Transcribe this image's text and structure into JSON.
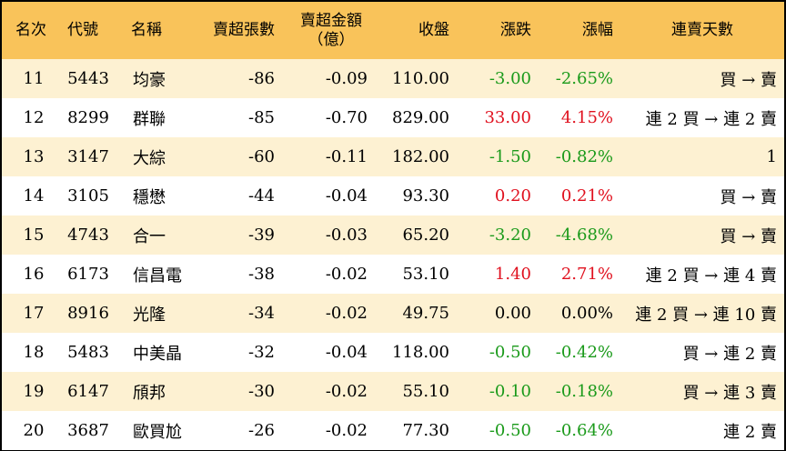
{
  "colors": {
    "header_bg": "#f9c35a",
    "odd_row_bg": "#fdf1d2",
    "even_row_bg": "#ffffff",
    "up": "#e0101e",
    "down": "#1a9a1a",
    "neutral": "#000000"
  },
  "headers": {
    "rank": "名次",
    "code": "代號",
    "name": "名稱",
    "sell_lots": "賣超張數",
    "sell_amount_line1": "賣超金額",
    "sell_amount_line2": "（億）",
    "close": "收盤",
    "change": "漲跌",
    "pct": "漲幅",
    "streak": "連賣天數"
  },
  "rows": [
    {
      "rank": "11",
      "code": "5443",
      "name": "均豪",
      "lots": "-86",
      "amount": "-0.09",
      "close": "110.00",
      "change": "-3.00",
      "pct": "-2.65%",
      "dir": "down",
      "streak": "買 → 賣"
    },
    {
      "rank": "12",
      "code": "8299",
      "name": "群聯",
      "lots": "-85",
      "amount": "-0.70",
      "close": "829.00",
      "change": "33.00",
      "pct": "4.15%",
      "dir": "up",
      "streak": "連 2 買 → 連 2 賣"
    },
    {
      "rank": "13",
      "code": "3147",
      "name": "大綜",
      "lots": "-60",
      "amount": "-0.11",
      "close": "182.00",
      "change": "-1.50",
      "pct": "-0.82%",
      "dir": "down",
      "streak": "1"
    },
    {
      "rank": "14",
      "code": "3105",
      "name": "穩懋",
      "lots": "-44",
      "amount": "-0.04",
      "close": "93.30",
      "change": "0.20",
      "pct": "0.21%",
      "dir": "up",
      "streak": "買 → 賣"
    },
    {
      "rank": "15",
      "code": "4743",
      "name": "合一",
      "lots": "-39",
      "amount": "-0.03",
      "close": "65.20",
      "change": "-3.20",
      "pct": "-4.68%",
      "dir": "down",
      "streak": "買 → 賣"
    },
    {
      "rank": "16",
      "code": "6173",
      "name": "信昌電",
      "lots": "-38",
      "amount": "-0.02",
      "close": "53.10",
      "change": "1.40",
      "pct": "2.71%",
      "dir": "up",
      "streak": "連 2 買 → 連 4 賣"
    },
    {
      "rank": "17",
      "code": "8916",
      "name": "光隆",
      "lots": "-34",
      "amount": "-0.02",
      "close": "49.75",
      "change": "0.00",
      "pct": "0.00%",
      "dir": "flat",
      "streak": "連 2 買 → 連 10 賣"
    },
    {
      "rank": "18",
      "code": "5483",
      "name": "中美晶",
      "lots": "-32",
      "amount": "-0.04",
      "close": "118.00",
      "change": "-0.50",
      "pct": "-0.42%",
      "dir": "down",
      "streak": "買 → 連 2 賣"
    },
    {
      "rank": "19",
      "code": "6147",
      "name": "頎邦",
      "lots": "-30",
      "amount": "-0.02",
      "close": "55.10",
      "change": "-0.10",
      "pct": "-0.18%",
      "dir": "down",
      "streak": "買 → 連 3 賣"
    },
    {
      "rank": "20",
      "code": "3687",
      "name": "歐買尬",
      "lots": "-26",
      "amount": "-0.02",
      "close": "77.30",
      "change": "-0.50",
      "pct": "-0.64%",
      "dir": "down",
      "streak": "連 2 賣"
    }
  ]
}
